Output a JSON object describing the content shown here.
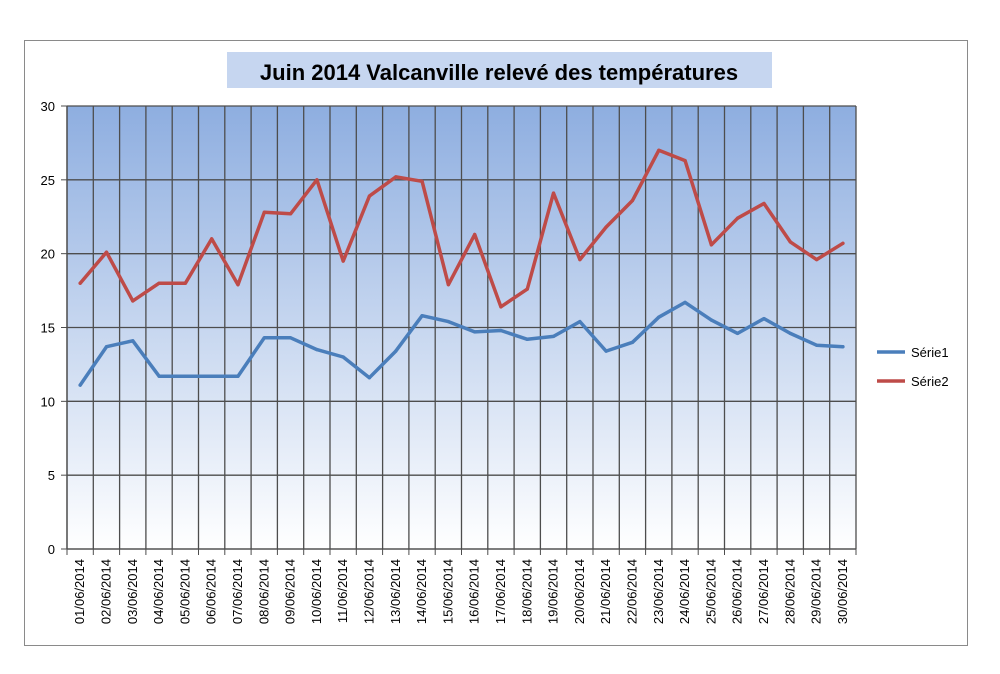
{
  "chart_data": {
    "type": "line",
    "title": "Juin 2014 Valcanville relevé des températures",
    "xlabel": "",
    "ylabel": "",
    "ylim": [
      0,
      30
    ],
    "yticks": [
      0,
      5,
      10,
      15,
      20,
      25,
      30
    ],
    "grid": true,
    "legend_position": "right",
    "categories": [
      "01/06/2014",
      "02/06/2014",
      "03/06/2014",
      "04/06/2014",
      "05/06/2014",
      "06/06/2014",
      "07/06/2014",
      "08/06/2014",
      "09/06/2014",
      "10/06/2014",
      "11/06/2014",
      "12/06/2014",
      "13/06/2014",
      "14/06/2014",
      "15/06/2014",
      "16/06/2014",
      "17/06/2014",
      "18/06/2014",
      "19/06/2014",
      "20/06/2014",
      "21/06/2014",
      "22/06/2014",
      "23/06/2014",
      "24/06/2014",
      "25/06/2014",
      "26/06/2014",
      "27/06/2014",
      "28/06/2014",
      "29/06/2014",
      "30/06/2014"
    ],
    "series": [
      {
        "name": "Série1",
        "color": "#4a7ebb",
        "values": [
          11.1,
          13.7,
          14.1,
          11.7,
          11.7,
          11.7,
          11.7,
          14.3,
          14.3,
          13.5,
          13.0,
          11.6,
          13.4,
          15.8,
          15.4,
          14.7,
          14.8,
          14.2,
          14.4,
          15.4,
          13.4,
          14.0,
          15.7,
          16.7,
          15.5,
          14.6,
          15.6,
          14.6,
          13.8,
          13.7
        ]
      },
      {
        "name": "Série2",
        "color": "#be4b48",
        "values": [
          18.0,
          20.1,
          16.8,
          18.0,
          18.0,
          21.0,
          17.9,
          22.8,
          22.7,
          25.0,
          19.5,
          23.9,
          25.2,
          24.9,
          17.9,
          21.3,
          16.4,
          17.6,
          24.1,
          19.6,
          21.8,
          23.6,
          27.0,
          26.3,
          20.6,
          22.4,
          23.4,
          20.8,
          19.6,
          20.7
        ]
      }
    ],
    "colors": {
      "plot_gradient_top": "#8eaee0",
      "plot_gradient_bottom": "#ffffff",
      "grid": "#4d4d4d",
      "title_background": "#c6d6f0"
    }
  }
}
